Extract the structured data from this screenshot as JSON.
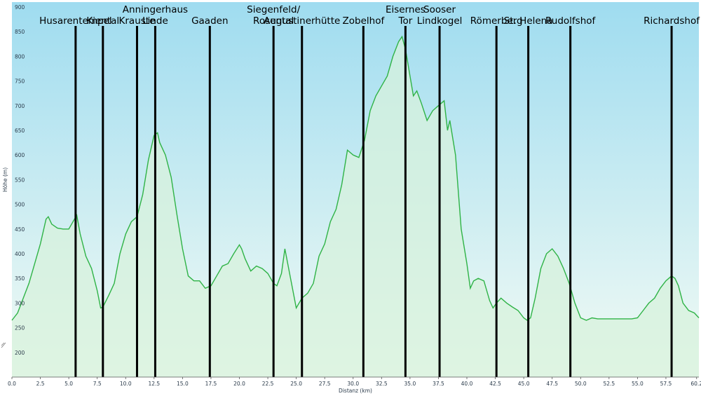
{
  "chart_data": {
    "type": "area",
    "xlabel": "Distanz (km)",
    "ylabel": "Höhe (m)",
    "xlim": [
      0,
      60.4
    ],
    "ylim": [
      150,
      910
    ],
    "x_ticks": [
      0.0,
      2.5,
      5.0,
      7.5,
      10.0,
      12.5,
      15.0,
      17.5,
      20.0,
      22.5,
      25.0,
      27.5,
      30.0,
      32.5,
      35.0,
      37.5,
      40.0,
      42.5,
      45.0,
      47.5,
      50.0,
      52.5,
      55.0,
      57.5,
      60.2
    ],
    "x_tick_labels": [
      "0.0",
      "2.5",
      "5.0",
      "7.5",
      "10.0",
      "12.5",
      "15.0",
      "17.5",
      "20.0",
      "22.5",
      "25.0",
      "27.5",
      "30.0",
      "32.5",
      "35.0",
      "37.5",
      "40.0",
      "42.5",
      "45.0",
      "47.5",
      "50.0",
      "52.5",
      "55.0",
      "57.5",
      "60.2"
    ],
    "y_ticks": [
      200,
      250,
      300,
      350,
      400,
      450,
      500,
      550,
      600,
      650,
      700,
      750,
      800,
      850,
      900
    ],
    "grid": false,
    "colors": {
      "line": "#2fb346",
      "fill": "#d7f2dc",
      "sky_top": "#9fdcf0",
      "sky_bottom": "#f3fbf4",
      "marker": "#000000"
    },
    "series": [
      {
        "x": [
          0,
          0.5,
          1,
          1.5,
          2,
          2.5,
          3,
          3.2,
          3.5,
          4,
          4.5,
          5,
          5.5,
          5.7,
          6,
          6.5,
          7,
          7.5,
          7.8,
          8,
          8.5,
          9,
          9.5,
          10,
          10.5,
          11,
          11.5,
          12,
          12.5,
          12.8,
          13,
          13.5,
          14,
          14.5,
          15,
          15.5,
          16,
          16.5,
          17,
          17.5,
          18,
          18.5,
          19,
          19.5,
          20,
          20.2,
          20.5,
          21,
          21.5,
          22,
          22.5,
          23,
          23.3,
          23.7,
          24,
          24.5,
          25,
          25.5,
          26,
          26.5,
          27,
          27.5,
          28,
          28.5,
          29,
          29.5,
          30,
          30.5,
          31,
          31.5,
          32,
          32.5,
          33,
          33.5,
          34,
          34.3,
          34.6,
          35,
          35.3,
          35.6,
          36,
          36.5,
          37,
          37.5,
          38,
          38.3,
          38.5,
          39,
          39.5,
          40,
          40.3,
          40.6,
          41,
          41.5,
          42,
          42.3,
          42.6,
          43,
          43.5,
          44,
          44.5,
          45,
          45.3,
          45.6,
          46,
          46.5,
          47,
          47.5,
          48,
          48.5,
          49,
          49.5,
          50,
          50.5,
          51,
          51.5,
          52,
          52.5,
          53,
          53.5,
          54,
          54.5,
          55,
          55.5,
          56,
          56.5,
          57,
          57.5,
          58,
          58.3,
          58.6,
          59,
          59.5,
          60,
          60.4
        ],
        "y": [
          265,
          280,
          310,
          340,
          380,
          420,
          470,
          475,
          460,
          452,
          450,
          450,
          470,
          478,
          440,
          395,
          370,
          325,
          290,
          292,
          315,
          340,
          400,
          440,
          465,
          475,
          520,
          590,
          640,
          645,
          625,
          600,
          555,
          480,
          410,
          355,
          345,
          345,
          330,
          335,
          355,
          375,
          380,
          400,
          418,
          410,
          390,
          365,
          375,
          370,
          360,
          340,
          335,
          360,
          410,
          350,
          290,
          310,
          320,
          340,
          395,
          420,
          465,
          490,
          540,
          610,
          600,
          595,
          630,
          690,
          720,
          740,
          760,
          800,
          830,
          840,
          815,
          760,
          720,
          730,
          705,
          670,
          690,
          700,
          710,
          650,
          670,
          600,
          450,
          380,
          330,
          345,
          350,
          345,
          305,
          290,
          300,
          310,
          300,
          292,
          285,
          270,
          265,
          270,
          310,
          370,
          400,
          410,
          395,
          370,
          340,
          300,
          270,
          265,
          270,
          268,
          268,
          268,
          268,
          268,
          268,
          268,
          270,
          285,
          300,
          310,
          330,
          345,
          355,
          350,
          335,
          300,
          285,
          280,
          270
        ]
      }
    ],
    "waypoints": [
      {
        "x": 5.6,
        "lines": [
          "Husarentempel"
        ]
      },
      {
        "x": 8.0,
        "lines": [
          "Kiental"
        ]
      },
      {
        "x": 11.0,
        "lines": [
          "Krauste"
        ]
      },
      {
        "x": 12.6,
        "lines": [
          "Anningerhaus",
          "Linde"
        ]
      },
      {
        "x": 17.4,
        "lines": [
          "Gaaden"
        ]
      },
      {
        "x": 23.0,
        "lines": [
          "Siegenfeld/",
          "Rosental"
        ]
      },
      {
        "x": 25.5,
        "lines": [
          "Augustinerhütte"
        ]
      },
      {
        "x": 30.9,
        "lines": [
          "Zobelhof"
        ]
      },
      {
        "x": 34.6,
        "lines": [
          "Eisernes",
          "Tor"
        ]
      },
      {
        "x": 37.6,
        "lines": [
          "Sooser",
          "Lindkogel"
        ]
      },
      {
        "x": 42.6,
        "lines": [
          "Römerberg"
        ]
      },
      {
        "x": 45.4,
        "lines": [
          "St. Helena"
        ]
      },
      {
        "x": 49.1,
        "lines": [
          "Rudolfshof"
        ]
      },
      {
        "x": 58.0,
        "lines": [
          "Richardshof"
        ]
      }
    ]
  }
}
